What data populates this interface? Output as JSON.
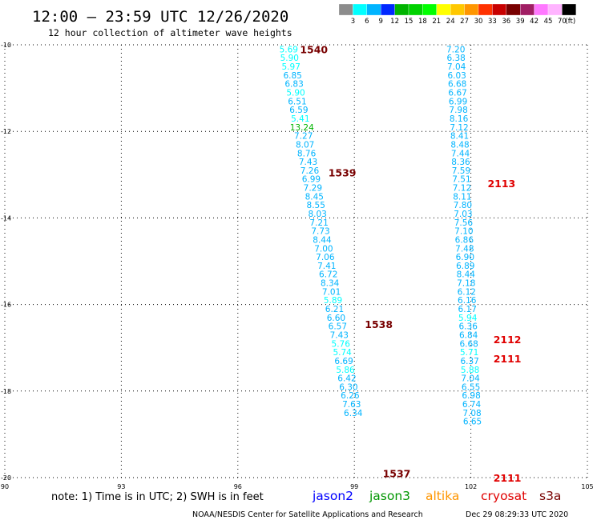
{
  "header": {
    "title": "12:00 – 23:59 UTC 12/26/2020",
    "subtitle": "12 hour collection of altimeter wave heights"
  },
  "colorbar": {
    "unit": "(ft)",
    "colors": [
      "#8c8c8c",
      "#00ffff",
      "#00b4ff",
      "#0028ff",
      "#00b400",
      "#00d200",
      "#00ff00",
      "#ffff00",
      "#ffc800",
      "#ff9600",
      "#ff3200",
      "#c80000",
      "#780000",
      "#a01e64",
      "#ff78ff",
      "#ffb4ff",
      "#000000"
    ],
    "labels": [
      "3",
      "6",
      "9",
      "12",
      "15",
      "18",
      "21",
      "24",
      "27",
      "30",
      "33",
      "36",
      "39",
      "42",
      "45",
      "70"
    ]
  },
  "chart_data": {
    "type": "scatter",
    "title": "12:00 – 23:59 UTC 12/26/2020",
    "subtitle": "12 hour collection of altimeter wave heights",
    "xlim": [
      90,
      105
    ],
    "ylim": [
      -20,
      -10
    ],
    "x_ticks": [
      "90",
      "93",
      "96",
      "99",
      "102",
      "105"
    ],
    "y_ticks": [
      "-10",
      "-12",
      "-14",
      "-16",
      "-18",
      "-20"
    ],
    "grid": true,
    "series": [
      {
        "name": "jason2",
        "color": "#0000ff",
        "points": [
          {
            "x": 97.31,
            "y": -10.1,
            "v": "5.69"
          },
          {
            "x": 97.33,
            "y": -10.3,
            "v": "5.90"
          },
          {
            "x": 97.37,
            "y": -10.5,
            "v": "5.97"
          },
          {
            "x": 97.41,
            "y": -10.7,
            "v": "6.85"
          },
          {
            "x": 97.45,
            "y": -10.9,
            "v": "6.83"
          },
          {
            "x": 97.49,
            "y": -11.1,
            "v": "5.90"
          },
          {
            "x": 97.53,
            "y": -11.3,
            "v": "6.51"
          },
          {
            "x": 97.57,
            "y": -11.5,
            "v": "6.59"
          },
          {
            "x": 97.61,
            "y": -11.7,
            "v": "5.41"
          },
          {
            "x": 97.65,
            "y": -11.9,
            "v": "13.24"
          },
          {
            "x": 97.69,
            "y": -12.1,
            "v": "7.27"
          },
          {
            "x": 97.73,
            "y": -12.3,
            "v": "8.07"
          },
          {
            "x": 97.77,
            "y": -12.5,
            "v": "8.76"
          },
          {
            "x": 97.81,
            "y": -12.7,
            "v": "7.43"
          },
          {
            "x": 97.85,
            "y": -12.9,
            "v": "7.26"
          },
          {
            "x": 97.89,
            "y": -13.1,
            "v": "6.99"
          },
          {
            "x": 97.93,
            "y": -13.3,
            "v": "7.29"
          },
          {
            "x": 97.97,
            "y": -13.5,
            "v": "8.45"
          },
          {
            "x": 98.01,
            "y": -13.7,
            "v": "8.55"
          },
          {
            "x": 98.05,
            "y": -13.9,
            "v": "8.03"
          },
          {
            "x": 98.09,
            "y": -14.1,
            "v": "7.21"
          },
          {
            "x": 98.13,
            "y": -14.3,
            "v": "7.73"
          },
          {
            "x": 98.17,
            "y": -14.5,
            "v": "8.44"
          },
          {
            "x": 98.21,
            "y": -14.7,
            "v": "7.00"
          },
          {
            "x": 98.25,
            "y": -14.9,
            "v": "7.06"
          },
          {
            "x": 98.29,
            "y": -15.1,
            "v": "7.41"
          },
          {
            "x": 98.33,
            "y": -15.3,
            "v": "6.72"
          },
          {
            "x": 98.37,
            "y": -15.5,
            "v": "8.34"
          },
          {
            "x": 98.41,
            "y": -15.7,
            "v": "7.01"
          },
          {
            "x": 98.45,
            "y": -15.9,
            "v": "5.89"
          },
          {
            "x": 98.49,
            "y": -16.1,
            "v": "6.21"
          },
          {
            "x": 98.53,
            "y": -16.3,
            "v": "6.60"
          },
          {
            "x": 98.57,
            "y": -16.5,
            "v": "6.57"
          },
          {
            "x": 98.61,
            "y": -16.7,
            "v": "7.43"
          },
          {
            "x": 98.65,
            "y": -16.9,
            "v": "5.76"
          },
          {
            "x": 98.69,
            "y": -17.1,
            "v": "5.74"
          },
          {
            "x": 98.73,
            "y": -17.3,
            "v": "6.69"
          },
          {
            "x": 98.77,
            "y": -17.5,
            "v": "5.86"
          },
          {
            "x": 98.81,
            "y": -17.7,
            "v": "6.42"
          },
          {
            "x": 98.85,
            "y": -17.9,
            "v": "6.30"
          },
          {
            "x": 98.89,
            "y": -18.1,
            "v": "6.26"
          },
          {
            "x": 98.93,
            "y": -18.3,
            "v": "7.63"
          },
          {
            "x": 98.97,
            "y": -18.5,
            "v": "6.34"
          }
        ]
      },
      {
        "name": "cryosat",
        "color": "#00b4ff",
        "points": [
          {
            "x": 101.61,
            "y": -10.1,
            "v": "7.20"
          },
          {
            "x": 101.62,
            "y": -10.3,
            "v": "6.38"
          },
          {
            "x": 101.63,
            "y": -10.5,
            "v": "7.04"
          },
          {
            "x": 101.64,
            "y": -10.7,
            "v": "6.03"
          },
          {
            "x": 101.65,
            "y": -10.9,
            "v": "6.68"
          },
          {
            "x": 101.66,
            "y": -11.1,
            "v": "6.67"
          },
          {
            "x": 101.67,
            "y": -11.3,
            "v": "6.99"
          },
          {
            "x": 101.68,
            "y": -11.5,
            "v": "7.98"
          },
          {
            "x": 101.69,
            "y": -11.7,
            "v": "8.16"
          },
          {
            "x": 101.7,
            "y": -11.9,
            "v": "7.12"
          },
          {
            "x": 101.71,
            "y": -12.1,
            "v": "8.41"
          },
          {
            "x": 101.72,
            "y": -12.3,
            "v": "8.48"
          },
          {
            "x": 101.73,
            "y": -12.5,
            "v": "7.44"
          },
          {
            "x": 101.74,
            "y": -12.7,
            "v": "8.36"
          },
          {
            "x": 101.75,
            "y": -12.9,
            "v": "7.59"
          },
          {
            "x": 101.76,
            "y": -13.1,
            "v": "7.51"
          },
          {
            "x": 101.77,
            "y": -13.3,
            "v": "7.12"
          },
          {
            "x": 101.78,
            "y": -13.5,
            "v": "8.11"
          },
          {
            "x": 101.79,
            "y": -13.7,
            "v": "7.80"
          },
          {
            "x": 101.8,
            "y": -13.9,
            "v": "7.03"
          },
          {
            "x": 101.81,
            "y": -14.1,
            "v": "7.56"
          },
          {
            "x": 101.82,
            "y": -14.3,
            "v": "7.10"
          },
          {
            "x": 101.83,
            "y": -14.5,
            "v": "6.86"
          },
          {
            "x": 101.84,
            "y": -14.7,
            "v": "7.48"
          },
          {
            "x": 101.85,
            "y": -14.9,
            "v": "6.90"
          },
          {
            "x": 101.86,
            "y": -15.1,
            "v": "6.89"
          },
          {
            "x": 101.87,
            "y": -15.3,
            "v": "8.44"
          },
          {
            "x": 101.88,
            "y": -15.5,
            "v": "7.18"
          },
          {
            "x": 101.89,
            "y": -15.7,
            "v": "6.12"
          },
          {
            "x": 101.9,
            "y": -15.9,
            "v": "6.16"
          },
          {
            "x": 101.91,
            "y": -16.1,
            "v": "6.17"
          },
          {
            "x": 101.92,
            "y": -16.3,
            "v": "5.94"
          },
          {
            "x": 101.93,
            "y": -16.5,
            "v": "6.36"
          },
          {
            "x": 101.94,
            "y": -16.7,
            "v": "6.84"
          },
          {
            "x": 101.95,
            "y": -16.9,
            "v": "6.68"
          },
          {
            "x": 101.96,
            "y": -17.1,
            "v": "5.71"
          },
          {
            "x": 101.97,
            "y": -17.3,
            "v": "6.37"
          },
          {
            "x": 101.98,
            "y": -17.5,
            "v": "5.88"
          },
          {
            "x": 101.99,
            "y": -17.7,
            "v": "7.04"
          },
          {
            "x": 102.0,
            "y": -17.9,
            "v": "6.55"
          },
          {
            "x": 102.01,
            "y": -18.1,
            "v": "6.98"
          },
          {
            "x": 102.02,
            "y": -18.3,
            "v": "6.74"
          },
          {
            "x": 102.03,
            "y": -18.5,
            "v": "7.08"
          },
          {
            "x": 102.04,
            "y": -18.7,
            "v": "6.65"
          }
        ]
      }
    ],
    "time_labels": [
      {
        "text": "1540",
        "x": 97.6,
        "y": -10.1,
        "color": "#780000"
      },
      {
        "text": "1539",
        "x": 98.33,
        "y": -12.95,
        "color": "#780000"
      },
      {
        "text": "1538",
        "x": 99.27,
        "y": -16.45,
        "color": "#780000"
      },
      {
        "text": "1537",
        "x": 99.73,
        "y": -19.9,
        "color": "#780000"
      },
      {
        "text": "2113",
        "x": 102.43,
        "y": -13.2,
        "color": "#e00000"
      },
      {
        "text": "2112",
        "x": 102.58,
        "y": -16.8,
        "color": "#e00000"
      },
      {
        "text": "2111",
        "x": 102.58,
        "y": -17.25,
        "color": "#e00000"
      },
      {
        "text": "2111",
        "x": 102.58,
        "y": -20.0,
        "color": "#e00000"
      }
    ]
  },
  "footer": {
    "note": "note: 1) Time is in UTC; 2) SWH is in feet",
    "satellites": [
      {
        "name": "jason2",
        "color": "#0000ff"
      },
      {
        "name": "jason3",
        "color": "#009600"
      },
      {
        "name": "altika",
        "color": "#ff9600"
      },
      {
        "name": "cryosat",
        "color": "#e00000"
      },
      {
        "name": "s3a",
        "color": "#780000"
      }
    ],
    "credit": "NOAA/NESDIS Center for Satellite Applications and Research",
    "timestamp": "Dec 29 08:29:33 UTC 2020"
  }
}
